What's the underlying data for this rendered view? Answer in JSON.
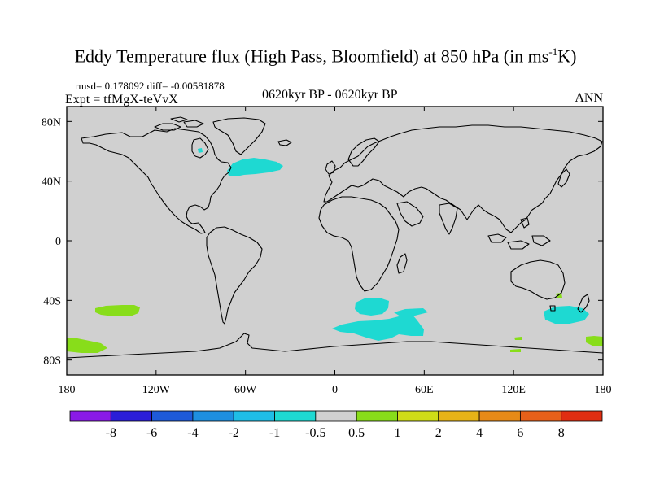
{
  "title": {
    "main": "Eddy Temperature flux (High Pass, Bloomfield) at 850 hPa (in ms",
    "sup": "-1",
    "tail": "K)"
  },
  "stats": "rmsd= 0.178092 diff= -0.00581878",
  "expt": "Expt = tfMgX-teVvX",
  "period": "0620kyr BP - 0620kyr BP",
  "season": "ANN",
  "map": {
    "background_color": "#d0d0d0",
    "lat_labels": [
      "80N",
      "40N",
      "0",
      "40S",
      "80S"
    ],
    "lat_values": [
      80,
      40,
      0,
      -40,
      -80
    ],
    "lon_labels": [
      "180",
      "120W",
      "60W",
      "0",
      "60E",
      "120E",
      "180"
    ],
    "lon_values": [
      -180,
      -120,
      -60,
      0,
      60,
      120,
      180
    ],
    "lat_range": [
      -90,
      90
    ],
    "lon_range": [
      -180,
      180
    ]
  },
  "colorbar": {
    "labels": [
      "-8",
      "-6",
      "-4",
      "-2",
      "-1",
      "-0.5",
      "0.5",
      "1",
      "2",
      "4",
      "6",
      "8"
    ],
    "colors": [
      "#8a1ae6",
      "#2b1ed8",
      "#1e5ad8",
      "#1e8fe0",
      "#1fbde6",
      "#1ed9d2",
      "#d0d0d0",
      "#88dd1a",
      "#cfdc17",
      "#e6b317",
      "#e68a17",
      "#e6601a",
      "#e02e12"
    ]
  },
  "anomalies": [
    {
      "label": "N Atlantic / NE America",
      "color": "#1ed9d2"
    },
    {
      "label": "Hudson Bay",
      "color": "#1ed9d2"
    },
    {
      "label": "South Atlantic",
      "color": "#1ed9d2"
    },
    {
      "label": "Southern Ocean (Atlantic sector)",
      "color": "#1ed9d2"
    },
    {
      "label": "South of Australia",
      "color": "#1ed9d2"
    },
    {
      "label": "South Pacific",
      "color": "#88dd1a"
    },
    {
      "label": "SE Pacific near Antarctica",
      "color": "#88dd1a"
    },
    {
      "label": "Tasman Sea",
      "color": "#88dd1a"
    },
    {
      "label": "Eastern Australia",
      "color": "#88dd1a"
    },
    {
      "label": "Antarctic coast 120E",
      "color": "#88dd1a"
    }
  ]
}
